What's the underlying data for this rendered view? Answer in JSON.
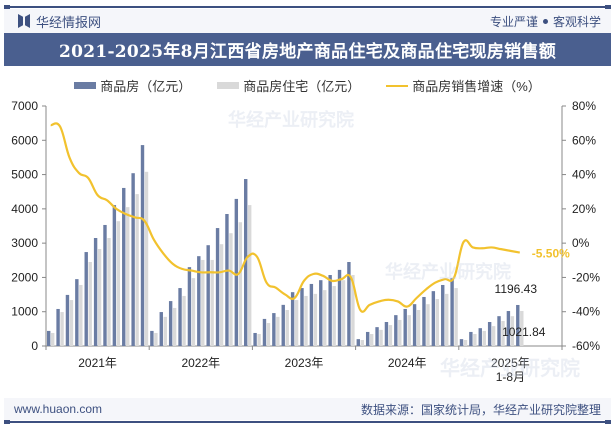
{
  "header": {
    "brand": "华经情报网",
    "motto_left": "专业严谨",
    "motto_right": "客观科学"
  },
  "title": "2021-2025年8月江西省房地产商品住宅及商品住宅现房销售额",
  "legend": [
    {
      "label": "商品房（亿元）",
      "color": "#6a7ca3",
      "kind": "bar"
    },
    {
      "label": "商品房住宅（亿元）",
      "color": "#d9d9d9",
      "kind": "bar"
    },
    {
      "label": "商品房销售增速（%）",
      "color": "#f2c22e",
      "kind": "line"
    }
  ],
  "footer": {
    "website": "www.huaon.com",
    "source": "数据来源：国家统计局，华经产业研究院整理"
  },
  "watermark": {
    "text": "华经产业研究院",
    "url": "www.huaon.com"
  },
  "chart_data": {
    "type": "bar+line",
    "title": "2021-2025年8月江西省房地产商品住宅及商品住宅现房销售额",
    "xlabel": "",
    "ylabel_left": "亿元",
    "ylabel_right": "%",
    "ylim_left": [
      0,
      7000
    ],
    "ylim_right": [
      -60,
      80
    ],
    "yticks_left": [
      "0",
      "1000",
      "2000",
      "3000",
      "4000",
      "5000",
      "6000",
      "7000"
    ],
    "yticks_right": [
      "-60%",
      "-40%",
      "-20%",
      "0%",
      "20%",
      "40%",
      "60%",
      "80%"
    ],
    "grid": false,
    "legend_position": "top",
    "year_groups": [
      {
        "label": "2021年",
        "sublabel": "",
        "slots": 11
      },
      {
        "label": "2022年",
        "sublabel": "",
        "slots": 11
      },
      {
        "label": "2023年",
        "sublabel": "",
        "slots": 11
      },
      {
        "label": "2024年",
        "sublabel": "",
        "slots": 11
      },
      {
        "label": "2025年",
        "sublabel": "1-8月",
        "slots": 11
      }
    ],
    "categories": [
      "2021-02",
      "2021-03",
      "2021-04",
      "2021-05",
      "2021-06",
      "2021-07",
      "2021-08",
      "2021-09",
      "2021-10",
      "2021-11",
      "2021-12",
      "2022-02",
      "2022-03",
      "2022-04",
      "2022-05",
      "2022-06",
      "2022-07",
      "2022-08",
      "2022-09",
      "2022-10",
      "2022-11",
      "2022-12",
      "2023-02",
      "2023-03",
      "2023-04",
      "2023-05",
      "2023-06",
      "2023-07",
      "2023-08",
      "2023-09",
      "2023-10",
      "2023-11",
      "2023-12",
      "2024-02",
      "2024-03",
      "2024-04",
      "2024-05",
      "2024-06",
      "2024-07",
      "2024-08",
      "2024-09",
      "2024-10",
      "2024-11",
      "2024-12",
      "2025-02",
      "2025-03",
      "2025-04",
      "2025-05",
      "2025-06",
      "2025-07",
      "2025-08"
    ],
    "series": [
      {
        "name": "商品房（亿元）",
        "type": "bar",
        "axis": "left",
        "color": "#6a7ca3",
        "values": [
          440,
          1080,
          1490,
          1950,
          2740,
          3150,
          3530,
          4110,
          4610,
          5040,
          5860,
          440,
          990,
          1310,
          1690,
          2300,
          2620,
          2940,
          3440,
          3850,
          4290,
          4870,
          380,
          790,
          960,
          1200,
          1570,
          1690,
          1810,
          1920,
          2070,
          2220,
          2450,
          200,
          410,
          550,
          700,
          900,
          1080,
          1220,
          1430,
          1600,
          1780,
          1980,
          200,
          410,
          520,
          700,
          870,
          1020,
          1196.43
        ]
      },
      {
        "name": "商品房住宅（亿元）",
        "type": "bar",
        "axis": "left",
        "color": "#d9d9d9",
        "values": [
          380,
          990,
          1340,
          1780,
          2450,
          2830,
          3150,
          3640,
          4050,
          4430,
          5080,
          380,
          850,
          1110,
          1460,
          1980,
          2510,
          2510,
          2970,
          3290,
          3610,
          4110,
          350,
          670,
          850,
          1050,
          1340,
          1460,
          1520,
          1630,
          1750,
          1920,
          2070,
          175,
          350,
          470,
          610,
          760,
          900,
          1050,
          1220,
          1370,
          1520,
          1690,
          175,
          350,
          440,
          580,
          730,
          870,
          1021.84
        ]
      },
      {
        "name": "商品房销售增速（%）",
        "type": "line",
        "axis": "right",
        "color": "#f2c22e",
        "values": [
          68.8,
          68,
          50,
          41,
          38,
          28,
          25,
          20,
          17,
          15,
          13,
          2,
          -6,
          -12,
          -15,
          -16,
          -17,
          -17,
          -17,
          -16,
          -18,
          -8,
          -8,
          -23,
          -26,
          -30,
          -32,
          -22,
          -18,
          -19,
          -22,
          -21,
          -20,
          -39,
          -36,
          -34,
          -33,
          -34,
          -37,
          -32,
          -27,
          -23,
          -21,
          -20,
          0.6,
          -2.5,
          -3,
          -2.5,
          -3.5,
          -4.5,
          -5.5
        ]
      }
    ],
    "annotations": [
      {
        "text": "1196.43",
        "series": "商品房（亿元）",
        "category": "2025-08"
      },
      {
        "text": "1021.84",
        "series": "商品房住宅（亿元）",
        "category": "2025-08"
      },
      {
        "text": "-5.50%",
        "series": "商品房销售增速（%）",
        "category": "2025-08",
        "color": "#f2c22e"
      }
    ]
  }
}
